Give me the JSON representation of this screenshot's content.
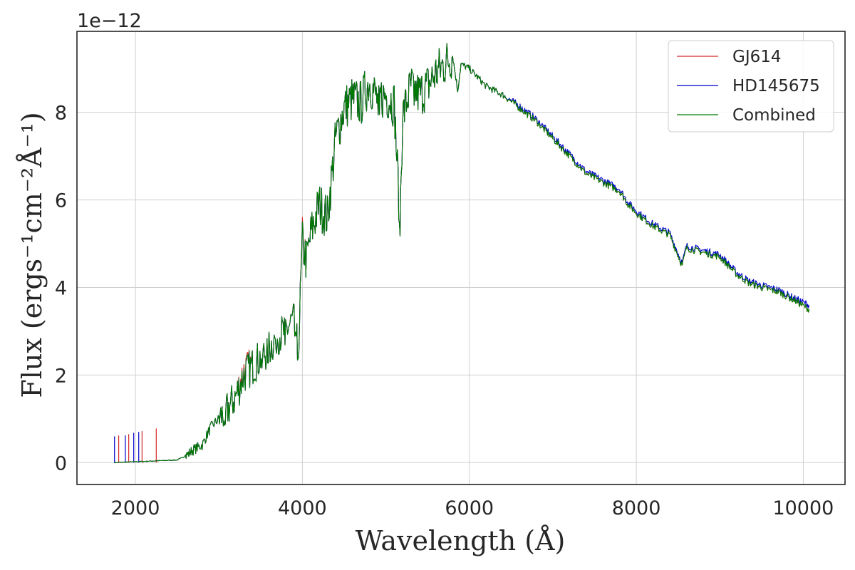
{
  "chart_data": {
    "type": "line",
    "title": "",
    "xlabel": "Wavelength (Å)",
    "ylabel": "Flux (ergs⁻¹cm⁻²Å⁻¹)",
    "y_offset_label": "1e−12",
    "y_scale": 1e-12,
    "xlim": [
      1300,
      10500
    ],
    "ylim": [
      -0.5,
      9.85
    ],
    "xticks": [
      2000,
      4000,
      6000,
      8000,
      10000
    ],
    "yticks": [
      0,
      2,
      4,
      6,
      8
    ],
    "grid": true,
    "legend_position": "top-right",
    "series": [
      {
        "name": "GJ614",
        "color": "#d62728",
        "x": [
          1750,
          2000,
          2250,
          2500,
          2600,
          2700,
          2800,
          2900,
          2950,
          3000,
          3100,
          3200,
          3300,
          3400,
          3500,
          3600,
          3700,
          3800,
          3900,
          3950,
          4000,
          4050,
          4100,
          4200,
          4300,
          4400,
          4500,
          4600,
          4700,
          4800,
          4900,
          5000,
          5100,
          5170,
          5200,
          5300,
          5400,
          5500,
          5600,
          5700,
          5800,
          5860,
          5900,
          6000,
          6200,
          6400,
          6600,
          6800,
          7000,
          7200,
          7400,
          7600,
          7800,
          7900,
          8000,
          8200,
          8400,
          8550,
          8600,
          8800,
          9000,
          9200,
          9350,
          9500,
          9700,
          9900,
          10070
        ],
        "values": [
          0.0,
          0.02,
          0.04,
          0.06,
          0.15,
          0.3,
          0.4,
          0.8,
          0.9,
          1.0,
          1.2,
          1.5,
          2.1,
          2.2,
          2.4,
          2.6,
          2.9,
          3.0,
          3.3,
          2.5,
          5.1,
          4.6,
          5.2,
          5.9,
          5.6,
          7.4,
          8.1,
          8.3,
          8.2,
          8.7,
          8.3,
          8.4,
          8.2,
          5.5,
          7.9,
          8.6,
          8.4,
          8.6,
          8.9,
          9.1,
          9.3,
          8.5,
          9.1,
          9.0,
          8.6,
          8.4,
          8.1,
          7.8,
          7.4,
          7.0,
          6.6,
          6.4,
          6.2,
          5.9,
          5.7,
          5.4,
          5.2,
          4.5,
          4.9,
          4.8,
          4.7,
          4.3,
          4.1,
          4.0,
          3.9,
          3.7,
          3.5
        ]
      },
      {
        "name": "HD145675",
        "color": "#0000cc",
        "x": [
          1750,
          2000,
          2250,
          2500,
          2600,
          2700,
          2800,
          2900,
          2950,
          3000,
          3100,
          3200,
          3300,
          3400,
          3500,
          3600,
          3700,
          3800,
          3900,
          3950,
          4000,
          4050,
          4100,
          4200,
          4300,
          4400,
          4500,
          4600,
          4700,
          4800,
          4900,
          5000,
          5100,
          5170,
          5200,
          5300,
          5400,
          5500,
          5600,
          5700,
          5800,
          5860,
          5900,
          6000,
          6200,
          6400,
          6600,
          6800,
          7000,
          7200,
          7400,
          7600,
          7800,
          7900,
          8000,
          8200,
          8400,
          8550,
          8600,
          8800,
          9000,
          9200,
          9350,
          9500,
          9700,
          9900,
          10070
        ],
        "values": [
          0.0,
          0.02,
          0.04,
          0.06,
          0.15,
          0.3,
          0.4,
          0.8,
          0.9,
          1.0,
          1.2,
          1.5,
          2.0,
          2.2,
          2.4,
          2.6,
          2.9,
          3.0,
          3.3,
          2.5,
          5.0,
          4.6,
          5.2,
          5.9,
          5.6,
          7.4,
          8.1,
          8.3,
          8.2,
          8.7,
          8.3,
          8.4,
          8.2,
          5.5,
          7.9,
          8.6,
          8.4,
          8.6,
          8.9,
          9.1,
          9.3,
          8.5,
          9.1,
          9.0,
          8.6,
          8.4,
          8.15,
          7.85,
          7.45,
          7.05,
          6.65,
          6.45,
          6.25,
          5.95,
          5.75,
          5.45,
          5.25,
          4.55,
          4.95,
          4.85,
          4.75,
          4.35,
          4.15,
          4.05,
          3.95,
          3.75,
          3.6
        ]
      },
      {
        "name": "Combined",
        "color": "#007a00",
        "x": [
          1750,
          2000,
          2250,
          2500,
          2600,
          2700,
          2800,
          2900,
          2950,
          3000,
          3100,
          3200,
          3300,
          3400,
          3500,
          3600,
          3700,
          3800,
          3900,
          3950,
          4000,
          4050,
          4100,
          4200,
          4300,
          4400,
          4500,
          4600,
          4700,
          4800,
          4900,
          5000,
          5100,
          5170,
          5200,
          5300,
          5400,
          5500,
          5600,
          5700,
          5800,
          5860,
          5900,
          6000,
          6200,
          6400,
          6600,
          6800,
          7000,
          7200,
          7400,
          7600,
          7800,
          7900,
          8000,
          8200,
          8400,
          8550,
          8600,
          8800,
          9000,
          9200,
          9350,
          9500,
          9700,
          9900,
          10070
        ],
        "values": [
          0.0,
          0.02,
          0.04,
          0.06,
          0.15,
          0.3,
          0.4,
          0.8,
          0.9,
          1.0,
          1.2,
          1.5,
          2.0,
          2.2,
          2.4,
          2.6,
          2.9,
          3.0,
          3.3,
          2.5,
          5.0,
          4.6,
          5.2,
          5.9,
          5.6,
          7.4,
          8.1,
          8.3,
          8.2,
          8.7,
          8.3,
          8.4,
          8.2,
          5.5,
          7.9,
          8.6,
          8.4,
          8.6,
          8.9,
          9.1,
          9.3,
          8.5,
          9.1,
          9.0,
          8.6,
          8.4,
          8.1,
          7.8,
          7.4,
          7.0,
          6.6,
          6.4,
          6.2,
          5.9,
          5.7,
          5.4,
          5.2,
          4.5,
          4.9,
          4.8,
          4.7,
          4.3,
          4.1,
          4.0,
          3.9,
          3.7,
          3.5
        ]
      }
    ],
    "spikes": [
      {
        "x": 1750,
        "value": 0.6,
        "color": "#0000cc"
      },
      {
        "x": 1800,
        "value": 0.62,
        "color": "#d62728"
      },
      {
        "x": 1880,
        "value": 0.62,
        "color": "#0000cc"
      },
      {
        "x": 1920,
        "value": 0.65,
        "color": "#d62728"
      },
      {
        "x": 1980,
        "value": 0.68,
        "color": "#0000cc"
      },
      {
        "x": 2040,
        "value": 0.7,
        "color": "#0000cc"
      },
      {
        "x": 2080,
        "value": 0.72,
        "color": "#d62728"
      },
      {
        "x": 2250,
        "value": 0.78,
        "color": "#d62728"
      }
    ]
  }
}
